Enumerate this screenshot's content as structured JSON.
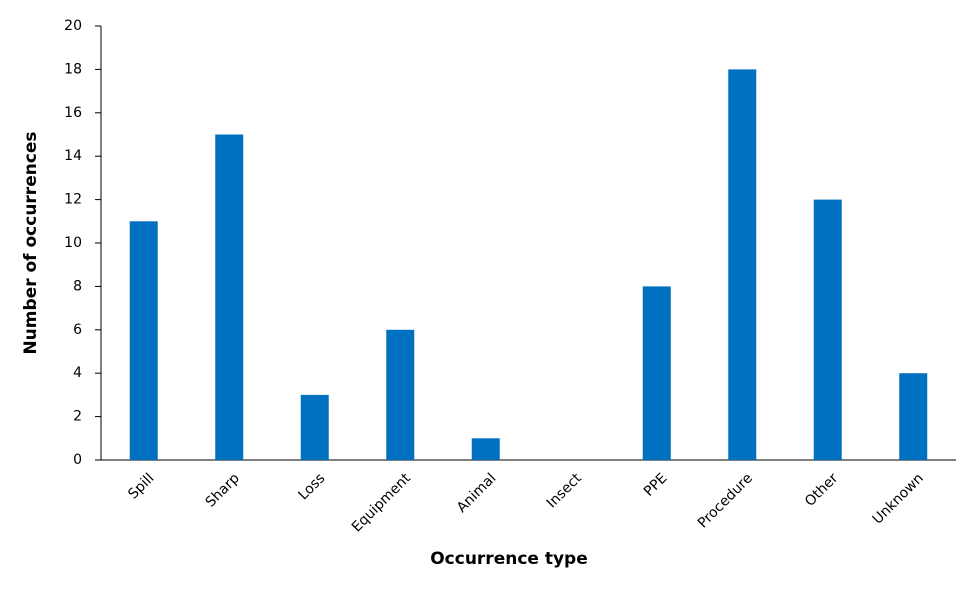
{
  "chart_data": {
    "type": "bar",
    "x_label": "Occurrence type",
    "y_label": "Number of occurrences",
    "categories": [
      "Spill",
      "Sharp",
      "Loss",
      "Equipment",
      "Animal",
      "Insect",
      "PPE",
      "Procedure",
      "Other",
      "Unknown"
    ],
    "values": [
      11,
      15,
      3,
      6,
      1,
      0,
      8,
      18,
      12,
      4
    ],
    "color": "#0070c0",
    "ylim": [
      0,
      20
    ],
    "yticks": [
      0,
      2,
      4,
      6,
      8,
      10,
      12,
      14,
      16,
      18,
      20
    ],
    "grid": false
  }
}
